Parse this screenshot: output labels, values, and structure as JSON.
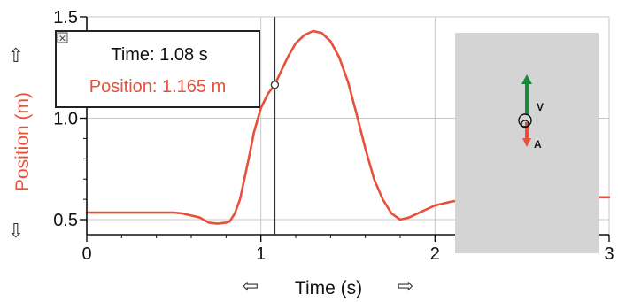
{
  "chart_data": {
    "type": "line",
    "xlabel": "Time (s)",
    "ylabel": "Position (m)",
    "xlim": [
      0,
      3
    ],
    "ylim": [
      0.4,
      1.5
    ],
    "x_ticks": [
      "0",
      "1",
      "2",
      "3"
    ],
    "y_ticks": [
      "0.5",
      "1.0",
      "1.5"
    ],
    "grid": true,
    "series": [
      {
        "color": "#e8503a",
        "x": [
          0,
          0.1,
          0.2,
          0.3,
          0.4,
          0.5,
          0.55,
          0.6,
          0.65,
          0.7,
          0.75,
          0.8,
          0.82,
          0.85,
          0.88,
          0.9,
          0.93,
          0.96,
          1.0,
          1.04,
          1.08,
          1.12,
          1.16,
          1.2,
          1.25,
          1.3,
          1.35,
          1.4,
          1.45,
          1.5,
          1.55,
          1.6,
          1.65,
          1.7,
          1.75,
          1.8,
          1.85,
          1.9,
          2.0,
          2.1,
          2.2,
          2.3,
          2.5,
          2.7,
          2.9,
          3.0
        ],
        "y": [
          0.535,
          0.535,
          0.535,
          0.535,
          0.535,
          0.535,
          0.53,
          0.52,
          0.51,
          0.485,
          0.48,
          0.485,
          0.49,
          0.53,
          0.6,
          0.68,
          0.8,
          0.93,
          1.05,
          1.12,
          1.165,
          1.24,
          1.31,
          1.37,
          1.41,
          1.43,
          1.42,
          1.38,
          1.3,
          1.18,
          1.02,
          0.85,
          0.7,
          0.6,
          0.53,
          0.5,
          0.51,
          0.53,
          0.57,
          0.59,
          0.6,
          0.6,
          0.6,
          0.6,
          0.61,
          0.61
        ]
      }
    ],
    "cursor": {
      "x": 1.08,
      "y": 1.165
    }
  },
  "readout": {
    "time_text": "Time: 1.08 s",
    "position_text": "Position: 1.165 m",
    "close_glyph": "×"
  },
  "nav_arrows": {
    "up": "⇧",
    "down": "⇩",
    "left": "⇦",
    "right": "⇨"
  },
  "motion_diagram": {
    "velocity_label": "V",
    "acceleration_label": "A",
    "velocity_color": "#1a8a3a",
    "acceleration_color": "#e8503a",
    "panel_color": "#d4d4d4"
  },
  "colors": {
    "accent": "#e8503a",
    "axis": "#111111",
    "grid": "#c8c8c8"
  }
}
